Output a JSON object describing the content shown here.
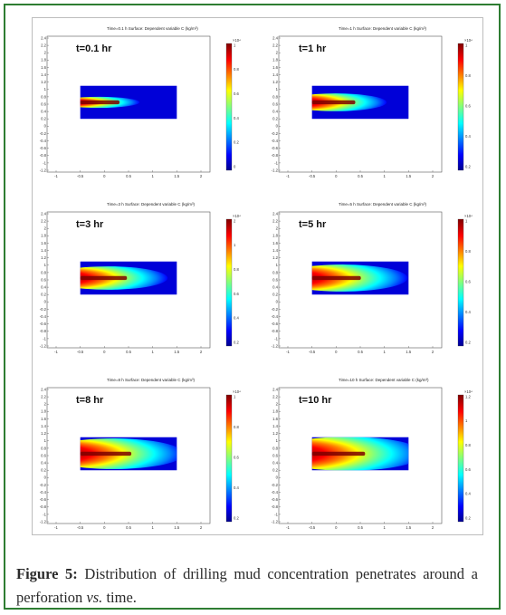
{
  "figure": {
    "caption_label": "Figure 5:",
    "caption_text_1": " Distribution of drilling mud concentration penetrates around a perforation ",
    "caption_vs": "vs.",
    "caption_text_2": " time.",
    "panels": [
      {
        "label": "t=0.1 hr",
        "title": "Time=0.1 h   Surface: Dependent variable C (kg/m³)",
        "spread": 0.18,
        "cbar_ticks": [
          "1",
          "0.8",
          "0.6",
          "0.4",
          "0.2",
          "0"
        ],
        "cbar_exp": "×10⁴"
      },
      {
        "label": "t=1 hr",
        "title": "Time=1 h   Surface: Dependent variable C (kg/m³)",
        "spread": 0.42,
        "cbar_ticks": [
          "1",
          "0.8",
          "0.6",
          "0.4",
          "0.2"
        ],
        "cbar_exp": "×10⁴"
      },
      {
        "label": "t=3 hr",
        "title": "Time=3 h   Surface: Dependent variable C (kg/m³)",
        "spread": 0.62,
        "cbar_ticks": [
          "2",
          "1",
          "0.8",
          "0.6",
          "0.4",
          "0.2"
        ],
        "cbar_exp": "×10⁴"
      },
      {
        "label": "t=5 hr",
        "title": "Time=5 h   Surface: Dependent variable C (kg/m³)",
        "spread": 0.75,
        "cbar_ticks": [
          "1",
          "0.8",
          "0.6",
          "0.4",
          "0.2"
        ],
        "cbar_exp": "×10⁴"
      },
      {
        "label": "t=8 hr",
        "title": "Time=8 h   Surface: Dependent variable C (kg/m³)",
        "spread": 0.88,
        "cbar_ticks": [
          "1",
          "0.8",
          "0.6",
          "0.4",
          "0.2"
        ],
        "cbar_exp": "×10⁴"
      },
      {
        "label": "t=10 hr",
        "title": "Time=10 h   Surface: Dependent variable C (kg/m³)",
        "spread": 1.0,
        "cbar_ticks": [
          "1.2",
          "1",
          "0.8",
          "0.6",
          "0.4",
          "0.2"
        ],
        "cbar_exp": "×10⁴"
      }
    ],
    "y_ticks": [
      "2.4",
      "2.2",
      "2",
      "1.8",
      "1.6",
      "1.4",
      "1.2",
      "1",
      "0.8",
      "0.6",
      "0.4",
      "0.2",
      "0",
      "-0.2",
      "-0.4",
      "-0.6",
      "-0.8",
      "-1",
      "-1.2"
    ],
    "x_ticks": [
      "-1",
      "-0.5",
      "0",
      "0.5",
      "1",
      "1.5",
      "2"
    ]
  },
  "colors": {
    "border": "#2e7d32",
    "jet_low": "#00008f",
    "jet_high": "#800000"
  }
}
